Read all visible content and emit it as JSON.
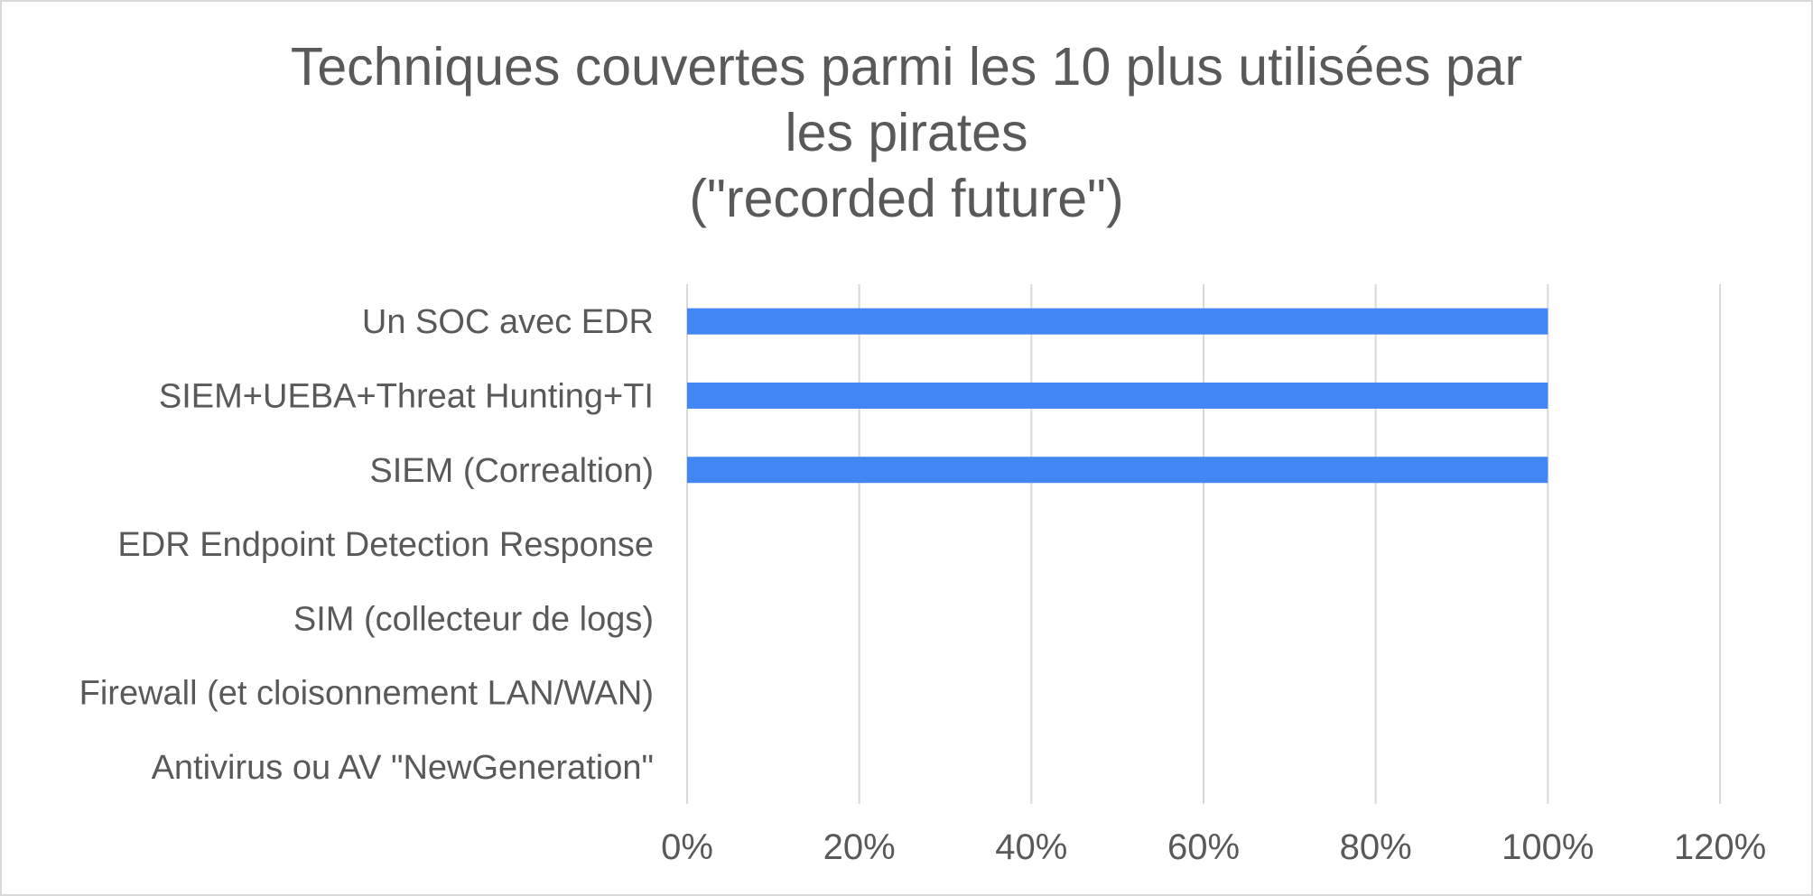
{
  "chart_data": {
    "type": "bar",
    "orientation": "horizontal",
    "title_lines": [
      "Techniques couvertes parmi les 10 plus utilisées par",
      "les pirates",
      "(\"recorded future\")"
    ],
    "categories": [
      "Un SOC avec EDR",
      "SIEM+UEBA+Threat Hunting+TI",
      "SIEM (Correaltion)",
      "EDR Endpoint Detection Response",
      "SIM (collecteur de logs)",
      "Firewall (et cloisonnement LAN/WAN)",
      "Antivirus ou AV \"NewGeneration\""
    ],
    "values": [
      1.0,
      1.0,
      1.0,
      0,
      0,
      0,
      0
    ],
    "x_ticks": [
      0,
      0.2,
      0.4,
      0.6,
      0.8,
      1.0,
      1.2
    ],
    "x_tick_labels": [
      "0%",
      "20%",
      "40%",
      "60%",
      "80%",
      "100%",
      "120%"
    ],
    "xlim": [
      0,
      1.2
    ],
    "grid": "vertical",
    "legend": "none",
    "colors": {
      "bar": "#4285f4",
      "grid": "#d9d9d9",
      "text": "#595959"
    }
  }
}
